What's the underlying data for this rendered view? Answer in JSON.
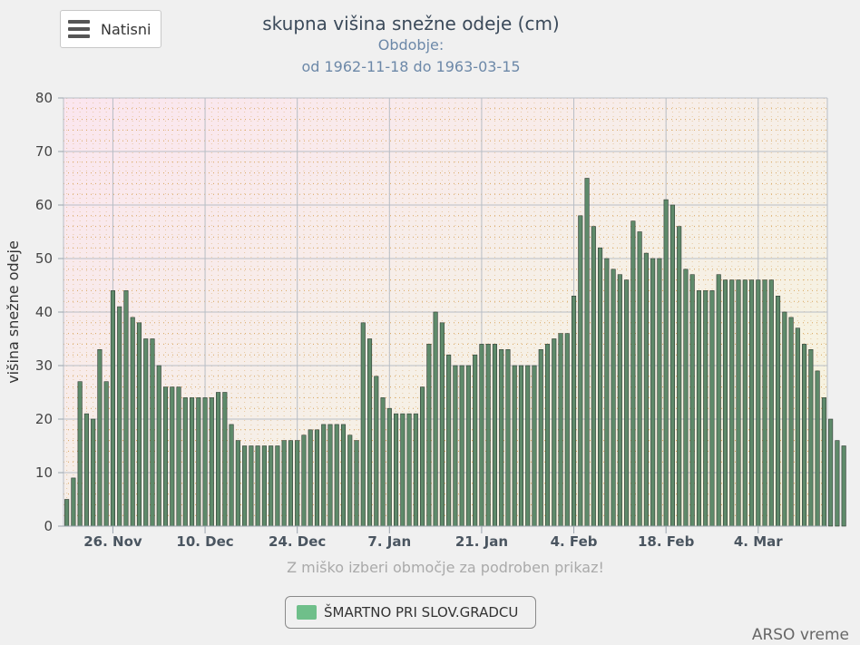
{
  "menu": {
    "label": "Natisni",
    "icon": "hamburger-menu-icon"
  },
  "header": {
    "title": "skupna višina snežne odeje (cm)",
    "subtitle_line1": "Obdobje:",
    "subtitle_line2": "od 1962-11-18 do 1963-03-15"
  },
  "hint": "Z miško izberi območje za podroben prikaz!",
  "legend": {
    "label": "ŠMARTNO PRI SLOV.GRADCU",
    "color": "#6fbf8a"
  },
  "credit": "ARSO vreme",
  "chart_data": {
    "type": "bar",
    "title": "skupna višina snežne odeje (cm)",
    "ylabel": "višina snežne odeje",
    "xlabel": "",
    "ylim": [
      0,
      80
    ],
    "yticks": [
      0,
      10,
      20,
      30,
      40,
      50,
      60,
      70,
      80
    ],
    "grid": true,
    "legend_position": "bottom",
    "bar_color": "#5e8a6a",
    "x_start": "1962-11-19",
    "x_end": "1963-03-14",
    "xticks": [
      {
        "label": "26. Nov",
        "date": "1962-11-26"
      },
      {
        "label": "10. Dec",
        "date": "1962-12-10"
      },
      {
        "label": "24. Dec",
        "date": "1962-12-24"
      },
      {
        "label": "7. Jan",
        "date": "1963-01-07"
      },
      {
        "label": "21. Jan",
        "date": "1963-01-21"
      },
      {
        "label": "4. Feb",
        "date": "1963-02-04"
      },
      {
        "label": "18. Feb",
        "date": "1963-02-18"
      },
      {
        "label": "4. Mar",
        "date": "1963-03-04"
      }
    ],
    "series": [
      {
        "name": "ŠMARTNO PRI SLOV.GRADCU",
        "values": [
          5,
          9,
          27,
          21,
          20,
          33,
          27,
          44,
          41,
          44,
          39,
          38,
          35,
          35,
          30,
          26,
          26,
          26,
          24,
          24,
          24,
          24,
          24,
          25,
          25,
          19,
          16,
          15,
          15,
          15,
          15,
          15,
          15,
          16,
          16,
          16,
          17,
          18,
          18,
          19,
          19,
          19,
          19,
          17,
          16,
          38,
          35,
          28,
          24,
          22,
          21,
          21,
          21,
          21,
          26,
          34,
          40,
          38,
          32,
          30,
          30,
          30,
          32,
          34,
          34,
          34,
          33,
          33,
          30,
          30,
          30,
          30,
          33,
          34,
          35,
          36,
          36,
          43,
          58,
          65,
          56,
          52,
          50,
          48,
          47,
          46,
          57,
          55,
          51,
          50,
          50,
          61,
          60,
          56,
          48,
          47,
          44,
          44,
          44,
          47,
          46,
          46,
          46,
          46,
          46,
          46,
          46,
          46,
          43,
          40,
          39,
          37,
          34,
          33,
          29,
          24,
          20,
          16,
          15
        ]
      }
    ]
  }
}
